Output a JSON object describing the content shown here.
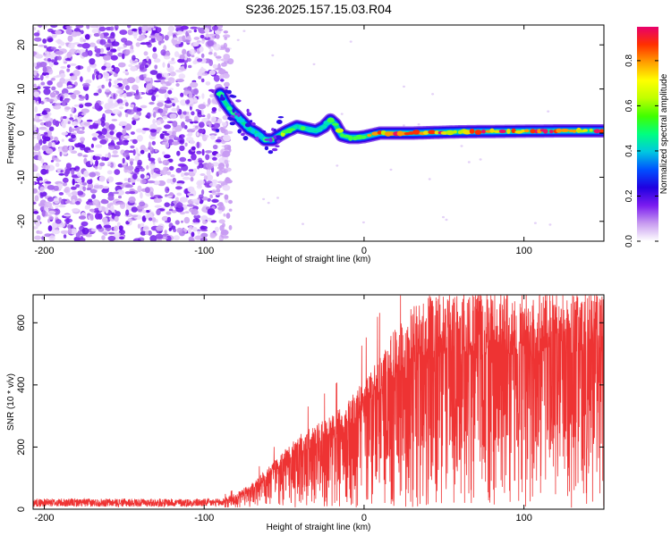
{
  "title": "S236.2025.157.15.03.R04",
  "chart_data": [
    {
      "type": "heatmap",
      "name": "spectrogram",
      "xlabel": "Height of straight line (km)",
      "ylabel": "Frequency (Hz)",
      "xlim": [
        -207,
        150
      ],
      "ylim": [
        -24.5,
        24.5
      ],
      "xticks": [
        -200,
        -100,
        0,
        100
      ],
      "yticks": [
        -20,
        -10,
        0,
        10,
        20
      ],
      "xtick_labels": [
        "-200",
        "-100",
        "0",
        "100"
      ],
      "ytick_labels": [
        "-20",
        "-10",
        "0",
        "10",
        "20"
      ],
      "noise_region_x": [
        -207,
        -88
      ],
      "trace": [
        {
          "x": -90,
          "y": 9
        },
        {
          "x": -87,
          "y": 7
        },
        {
          "x": -83,
          "y": 5
        },
        {
          "x": -80,
          "y": 4
        },
        {
          "x": -76,
          "y": 2.5
        },
        {
          "x": -72,
          "y": 1
        },
        {
          "x": -67,
          "y": 0
        },
        {
          "x": -62,
          "y": -1.5
        },
        {
          "x": -57,
          "y": -1.5
        },
        {
          "x": -53,
          "y": -0.5
        },
        {
          "x": -48,
          "y": 0.5
        },
        {
          "x": -42,
          "y": 1.5
        },
        {
          "x": -36,
          "y": 1
        },
        {
          "x": -30,
          "y": 0.5
        },
        {
          "x": -25,
          "y": 1.5
        },
        {
          "x": -21,
          "y": 3
        },
        {
          "x": -18,
          "y": 2
        },
        {
          "x": -14,
          "y": -0.5
        },
        {
          "x": -9,
          "y": -1
        },
        {
          "x": -4,
          "y": -1
        },
        {
          "x": 0,
          "y": -0.8
        },
        {
          "x": 10,
          "y": 0
        },
        {
          "x": 30,
          "y": 0
        },
        {
          "x": 60,
          "y": 0.3
        },
        {
          "x": 90,
          "y": 0.4
        },
        {
          "x": 120,
          "y": 0.5
        },
        {
          "x": 150,
          "y": 0.5
        }
      ]
    },
    {
      "type": "colorbar",
      "name": "amplitude-colorbar",
      "label": "Normalized spectral amplitude",
      "range": [
        0,
        0.95
      ],
      "ticks": [
        0.0,
        0.2,
        0.4,
        0.6,
        0.8
      ],
      "tick_labels": [
        "0.0",
        "0.2",
        "0.4",
        "0.6",
        "0.8"
      ],
      "colormap": [
        "#ffffff",
        "#c89cf0",
        "#7a1cf0",
        "#2000e0",
        "#0050ff",
        "#00c8e0",
        "#00ff80",
        "#40ff00",
        "#c0ff00",
        "#ffff00",
        "#ffa000",
        "#ff3000",
        "#e8006c"
      ]
    },
    {
      "type": "line",
      "name": "snr",
      "xlabel": "Height of straight line (km)",
      "ylabel": "SNR (10 * v/v)",
      "xlim": [
        -207,
        150
      ],
      "ylim": [
        0,
        690
      ],
      "xticks": [
        -200,
        -100,
        0,
        100
      ],
      "yticks": [
        0,
        200,
        400,
        600
      ],
      "xtick_labels": [
        "-200",
        "-100",
        "0",
        "100"
      ],
      "ytick_labels": [
        "0",
        "200",
        "400",
        "600"
      ],
      "color": "#ee3333",
      "envelope": [
        {
          "x": -207,
          "y": 20
        },
        {
          "x": -100,
          "y": 22
        },
        {
          "x": -90,
          "y": 30
        },
        {
          "x": -80,
          "y": 50
        },
        {
          "x": -70,
          "y": 80
        },
        {
          "x": -60,
          "y": 130
        },
        {
          "x": -50,
          "y": 180
        },
        {
          "x": -40,
          "y": 230
        },
        {
          "x": -30,
          "y": 260
        },
        {
          "x": -20,
          "y": 290
        },
        {
          "x": -10,
          "y": 330
        },
        {
          "x": 0,
          "y": 400
        },
        {
          "x": 10,
          "y": 470
        },
        {
          "x": 20,
          "y": 560
        },
        {
          "x": 30,
          "y": 620
        },
        {
          "x": 40,
          "y": 650
        },
        {
          "x": 60,
          "y": 660
        },
        {
          "x": 80,
          "y": 660
        },
        {
          "x": 100,
          "y": 660
        },
        {
          "x": 120,
          "y": 660
        },
        {
          "x": 150,
          "y": 655
        }
      ]
    }
  ]
}
